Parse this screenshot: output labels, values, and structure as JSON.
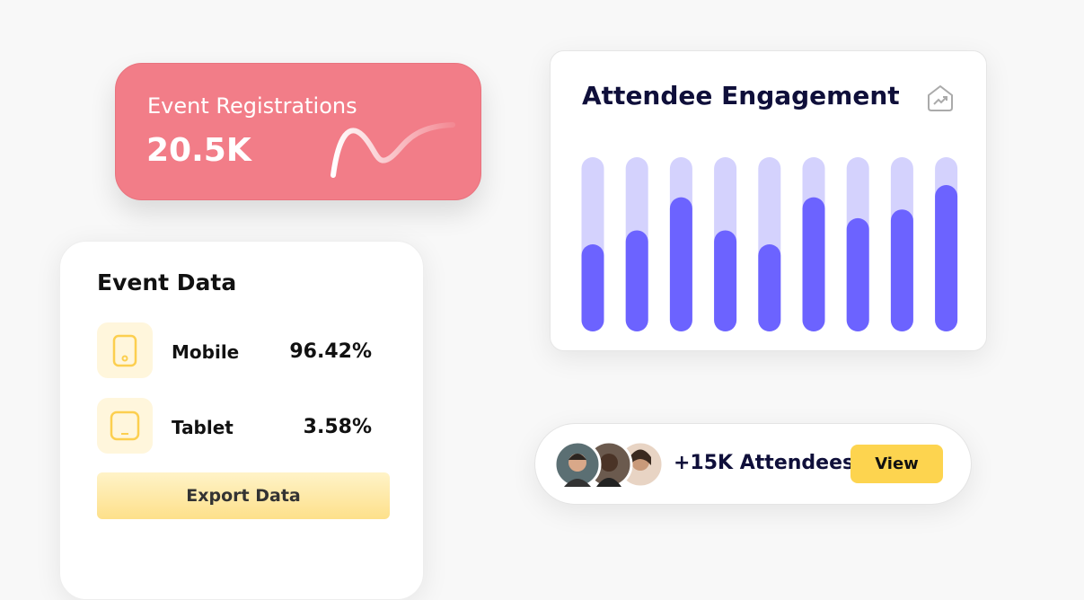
{
  "registrations": {
    "title": "Event Registrations",
    "value": "20.5K"
  },
  "event_data": {
    "title": "Event Data",
    "rows": [
      {
        "label": "Mobile",
        "value": "96.42%"
      },
      {
        "label": "Tablet",
        "value": "3.58%"
      }
    ],
    "button": "Export Data"
  },
  "engagement": {
    "title": "Attendee Engagement",
    "chart": {
      "type": "bar",
      "values": [
        50,
        58,
        77,
        58,
        50,
        77,
        65,
        70,
        84
      ],
      "ylim": [
        0,
        100
      ],
      "color": "#6c63ff",
      "track_color": "#d4d2fd"
    }
  },
  "attendees": {
    "label": "+15K Attendees",
    "button": "View"
  }
}
